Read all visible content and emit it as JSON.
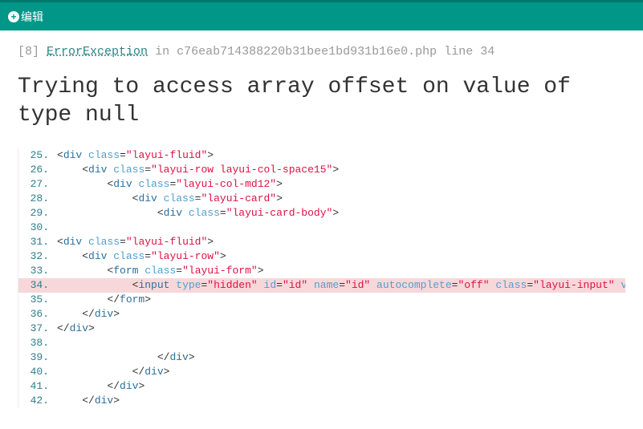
{
  "topbar": {
    "edit_label": "编辑"
  },
  "meta": {
    "code": "[8]",
    "exception": "ErrorException",
    "in": "in",
    "file": "c76eab714388220b31bee1bd931b16e0.php",
    "line_label": "line",
    "line_no": "34"
  },
  "error": {
    "message": "Trying to access array offset on value of type null"
  },
  "highlight_line": 34,
  "lines": [
    {
      "n": 25,
      "indent": 0,
      "tokens": [
        [
          "b",
          "<"
        ],
        [
          "tn",
          "div"
        ],
        [
          "b",
          " "
        ],
        [
          "an",
          "class"
        ],
        [
          "b",
          "="
        ],
        [
          "av",
          "\"layui-fluid\""
        ],
        [
          "b",
          ">"
        ]
      ]
    },
    {
      "n": 26,
      "indent": 1,
      "tokens": [
        [
          "b",
          "<"
        ],
        [
          "tn",
          "div"
        ],
        [
          "b",
          " "
        ],
        [
          "an",
          "class"
        ],
        [
          "b",
          "="
        ],
        [
          "av",
          "\"layui-row layui-col-space15\""
        ],
        [
          "b",
          ">"
        ]
      ]
    },
    {
      "n": 27,
      "indent": 2,
      "tokens": [
        [
          "b",
          "<"
        ],
        [
          "tn",
          "div"
        ],
        [
          "b",
          " "
        ],
        [
          "an",
          "class"
        ],
        [
          "b",
          "="
        ],
        [
          "av",
          "\"layui-col-md12\""
        ],
        [
          "b",
          ">"
        ]
      ]
    },
    {
      "n": 28,
      "indent": 3,
      "tokens": [
        [
          "b",
          "<"
        ],
        [
          "tn",
          "div"
        ],
        [
          "b",
          " "
        ],
        [
          "an",
          "class"
        ],
        [
          "b",
          "="
        ],
        [
          "av",
          "\"layui-card\""
        ],
        [
          "b",
          ">"
        ]
      ]
    },
    {
      "n": 29,
      "indent": 4,
      "tokens": [
        [
          "b",
          "<"
        ],
        [
          "tn",
          "div"
        ],
        [
          "b",
          " "
        ],
        [
          "an",
          "class"
        ],
        [
          "b",
          "="
        ],
        [
          "av",
          "\"layui-card-body\""
        ],
        [
          "b",
          ">"
        ]
      ]
    },
    {
      "n": 30,
      "indent": 0,
      "tokens": []
    },
    {
      "n": 31,
      "indent": 0,
      "tokens": [
        [
          "b",
          "<"
        ],
        [
          "tn",
          "div"
        ],
        [
          "b",
          " "
        ],
        [
          "an",
          "class"
        ],
        [
          "b",
          "="
        ],
        [
          "av",
          "\"layui-fluid\""
        ],
        [
          "b",
          ">"
        ]
      ]
    },
    {
      "n": 32,
      "indent": 1,
      "tokens": [
        [
          "b",
          "<"
        ],
        [
          "tn",
          "div"
        ],
        [
          "b",
          " "
        ],
        [
          "an",
          "class"
        ],
        [
          "b",
          "="
        ],
        [
          "av",
          "\"layui-row\""
        ],
        [
          "b",
          ">"
        ]
      ]
    },
    {
      "n": 33,
      "indent": 2,
      "tokens": [
        [
          "b",
          "<"
        ],
        [
          "tn",
          "form"
        ],
        [
          "b",
          " "
        ],
        [
          "an",
          "class"
        ],
        [
          "b",
          "="
        ],
        [
          "av",
          "\"layui-form\""
        ],
        [
          "b",
          ">"
        ]
      ]
    },
    {
      "n": 34,
      "indent": 3,
      "tokens": [
        [
          "b",
          "<"
        ],
        [
          "tn",
          "input"
        ],
        [
          "b",
          " "
        ],
        [
          "an",
          "type"
        ],
        [
          "b",
          "="
        ],
        [
          "av",
          "\"hidden\""
        ],
        [
          "b",
          " "
        ],
        [
          "an",
          "id"
        ],
        [
          "b",
          "="
        ],
        [
          "av",
          "\"id\""
        ],
        [
          "b",
          " "
        ],
        [
          "an",
          "name"
        ],
        [
          "b",
          "="
        ],
        [
          "av",
          "\"id\""
        ],
        [
          "b",
          " "
        ],
        [
          "an",
          "autocomplete"
        ],
        [
          "b",
          "="
        ],
        [
          "av",
          "\"off\""
        ],
        [
          "b",
          " "
        ],
        [
          "an",
          "class"
        ],
        [
          "b",
          "="
        ],
        [
          "av",
          "\"layui-input\""
        ],
        [
          "b",
          " "
        ],
        [
          "an",
          "value"
        ],
        [
          "b",
          "="
        ]
      ]
    },
    {
      "n": 35,
      "indent": 2,
      "tokens": [
        [
          "b",
          "</"
        ],
        [
          "tn",
          "form"
        ],
        [
          "b",
          ">"
        ]
      ]
    },
    {
      "n": 36,
      "indent": 1,
      "tokens": [
        [
          "b",
          "</"
        ],
        [
          "tn",
          "div"
        ],
        [
          "b",
          ">"
        ]
      ]
    },
    {
      "n": 37,
      "indent": 0,
      "tokens": [
        [
          "b",
          "</"
        ],
        [
          "tn",
          "div"
        ],
        [
          "b",
          ">"
        ]
      ]
    },
    {
      "n": 38,
      "indent": 0,
      "tokens": []
    },
    {
      "n": 39,
      "indent": 4,
      "tokens": [
        [
          "b",
          "</"
        ],
        [
          "tn",
          "div"
        ],
        [
          "b",
          ">"
        ]
      ]
    },
    {
      "n": 40,
      "indent": 3,
      "tokens": [
        [
          "b",
          "</"
        ],
        [
          "tn",
          "div"
        ],
        [
          "b",
          ">"
        ]
      ]
    },
    {
      "n": 41,
      "indent": 2,
      "tokens": [
        [
          "b",
          "</"
        ],
        [
          "tn",
          "div"
        ],
        [
          "b",
          ">"
        ]
      ]
    },
    {
      "n": 42,
      "indent": 1,
      "tokens": [
        [
          "b",
          "</"
        ],
        [
          "tn",
          "div"
        ],
        [
          "b",
          ">"
        ]
      ]
    }
  ],
  "style": {
    "topbar_bg": "#009688",
    "highlight_bg": "#f8d7da",
    "lineno_color": "#2e7d8a",
    "tag_color": "#2b6f9d",
    "attr_color": "#4f9fcf",
    "string_color": "#d14",
    "exception_color": "#268785",
    "error_font_size": 28,
    "code_font_size": 13,
    "indent_unit": "    "
  }
}
